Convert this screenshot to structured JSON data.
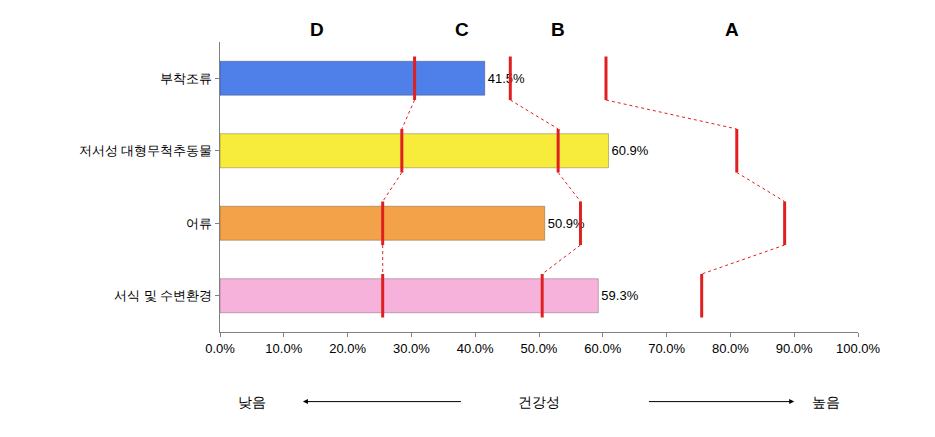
{
  "chart_data": {
    "type": "bar",
    "orientation": "horizontal",
    "categories": [
      "부착조류",
      "저서성 대형무척추동물",
      "어류",
      "서식 및 수변환경"
    ],
    "values": [
      41.5,
      60.9,
      50.9,
      59.3
    ],
    "value_labels": [
      "41.5%",
      "60.9%",
      "50.9%",
      "59.3%"
    ],
    "colors": [
      "#4f7fe8",
      "#f7ec3c",
      "#f4a24a",
      "#f7b2dc"
    ],
    "data_labels": true,
    "grid": false,
    "xlim": [
      0,
      100
    ],
    "xticks": [
      {
        "value": 0,
        "label": "0.0%"
      },
      {
        "value": 10,
        "label": "10.0%"
      },
      {
        "value": 20,
        "label": "20.0%"
      },
      {
        "value": 30,
        "label": "30.0%"
      },
      {
        "value": 40,
        "label": "40.0%"
      },
      {
        "value": 50,
        "label": "50.0%"
      },
      {
        "value": 60,
        "label": "60.0%"
      },
      {
        "value": 70,
        "label": "70.0%"
      },
      {
        "value": 80,
        "label": "80.0%"
      },
      {
        "value": 90,
        "label": "90.0%"
      },
      {
        "value": 100,
        "label": "100.0%"
      }
    ],
    "grade_labels": [
      "D",
      "C",
      "B",
      "A"
    ],
    "grade_boundaries": [
      [
        30.5,
        28.5,
        25.5,
        25.5
      ],
      [
        45.5,
        53,
        56.5,
        50.5
      ],
      [
        60.5,
        81,
        88.5,
        75.5
      ]
    ],
    "xlabel": "건강성",
    "xlabel_low": "낮음",
    "xlabel_high": "높음"
  }
}
